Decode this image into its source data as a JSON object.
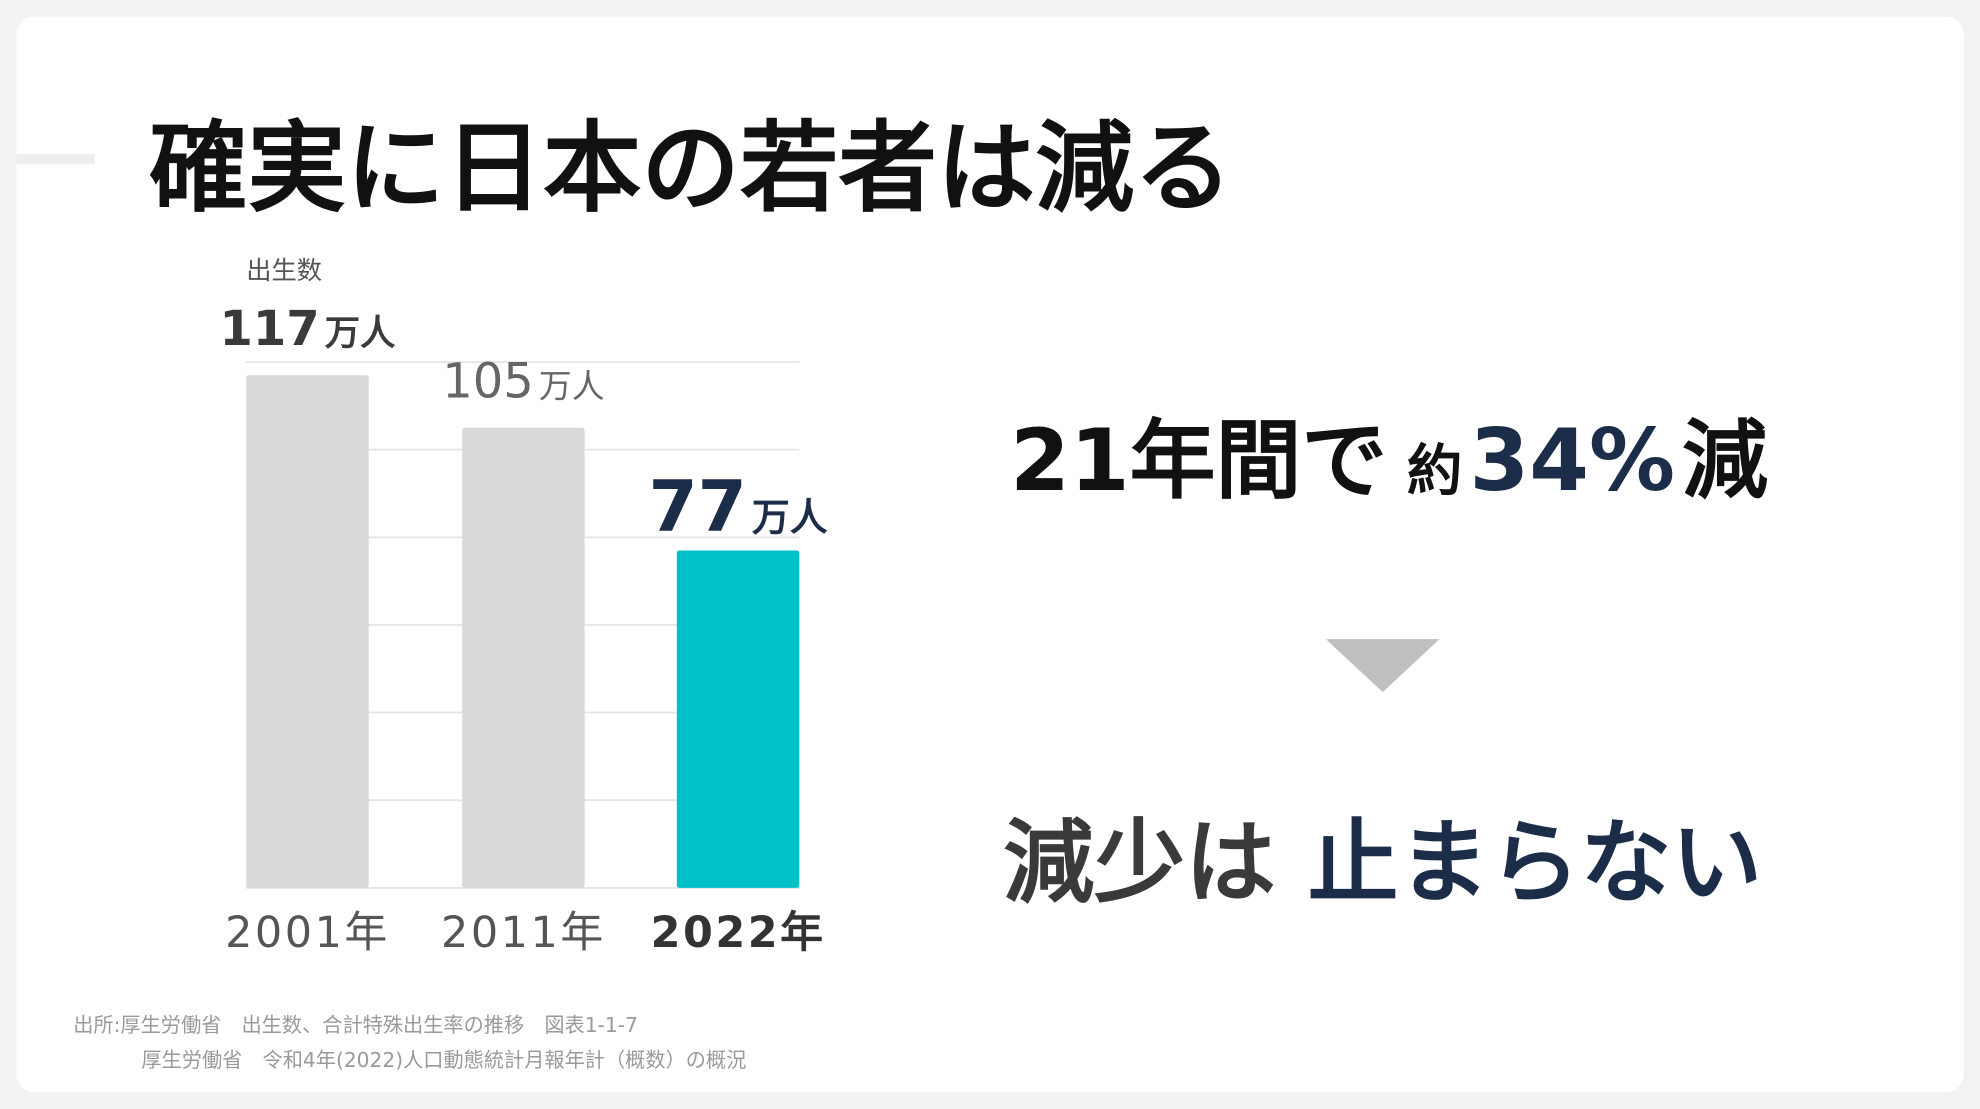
{
  "title": "確実に日本の若者は減る",
  "chart_data": {
    "type": "bar",
    "y_label": "出生数",
    "categories": [
      "2001年",
      "2011年",
      "2022年"
    ],
    "values": [
      117,
      105,
      77
    ],
    "value_labels": [
      "117万人",
      "105万人",
      "77万人"
    ],
    "colors": [
      "#d9d9d9",
      "#d9d9d9",
      "#00c0c8"
    ],
    "ylim": [
      0,
      120
    ],
    "yticks": [
      0,
      20,
      40,
      60,
      80,
      100,
      120
    ],
    "grid": true
  },
  "headline": [
    "21年間で",
    "約",
    "34%",
    "減"
  ],
  "conclusion": [
    "減少は",
    "止まらない"
  ],
  "source": [
    "出所:厚生労働省　出生数、合計特殊出生率の推移　図表1-1-7",
    "厚生労働省　令和4年(2022)人口動態統計月報年計（概数）の概況"
  ]
}
